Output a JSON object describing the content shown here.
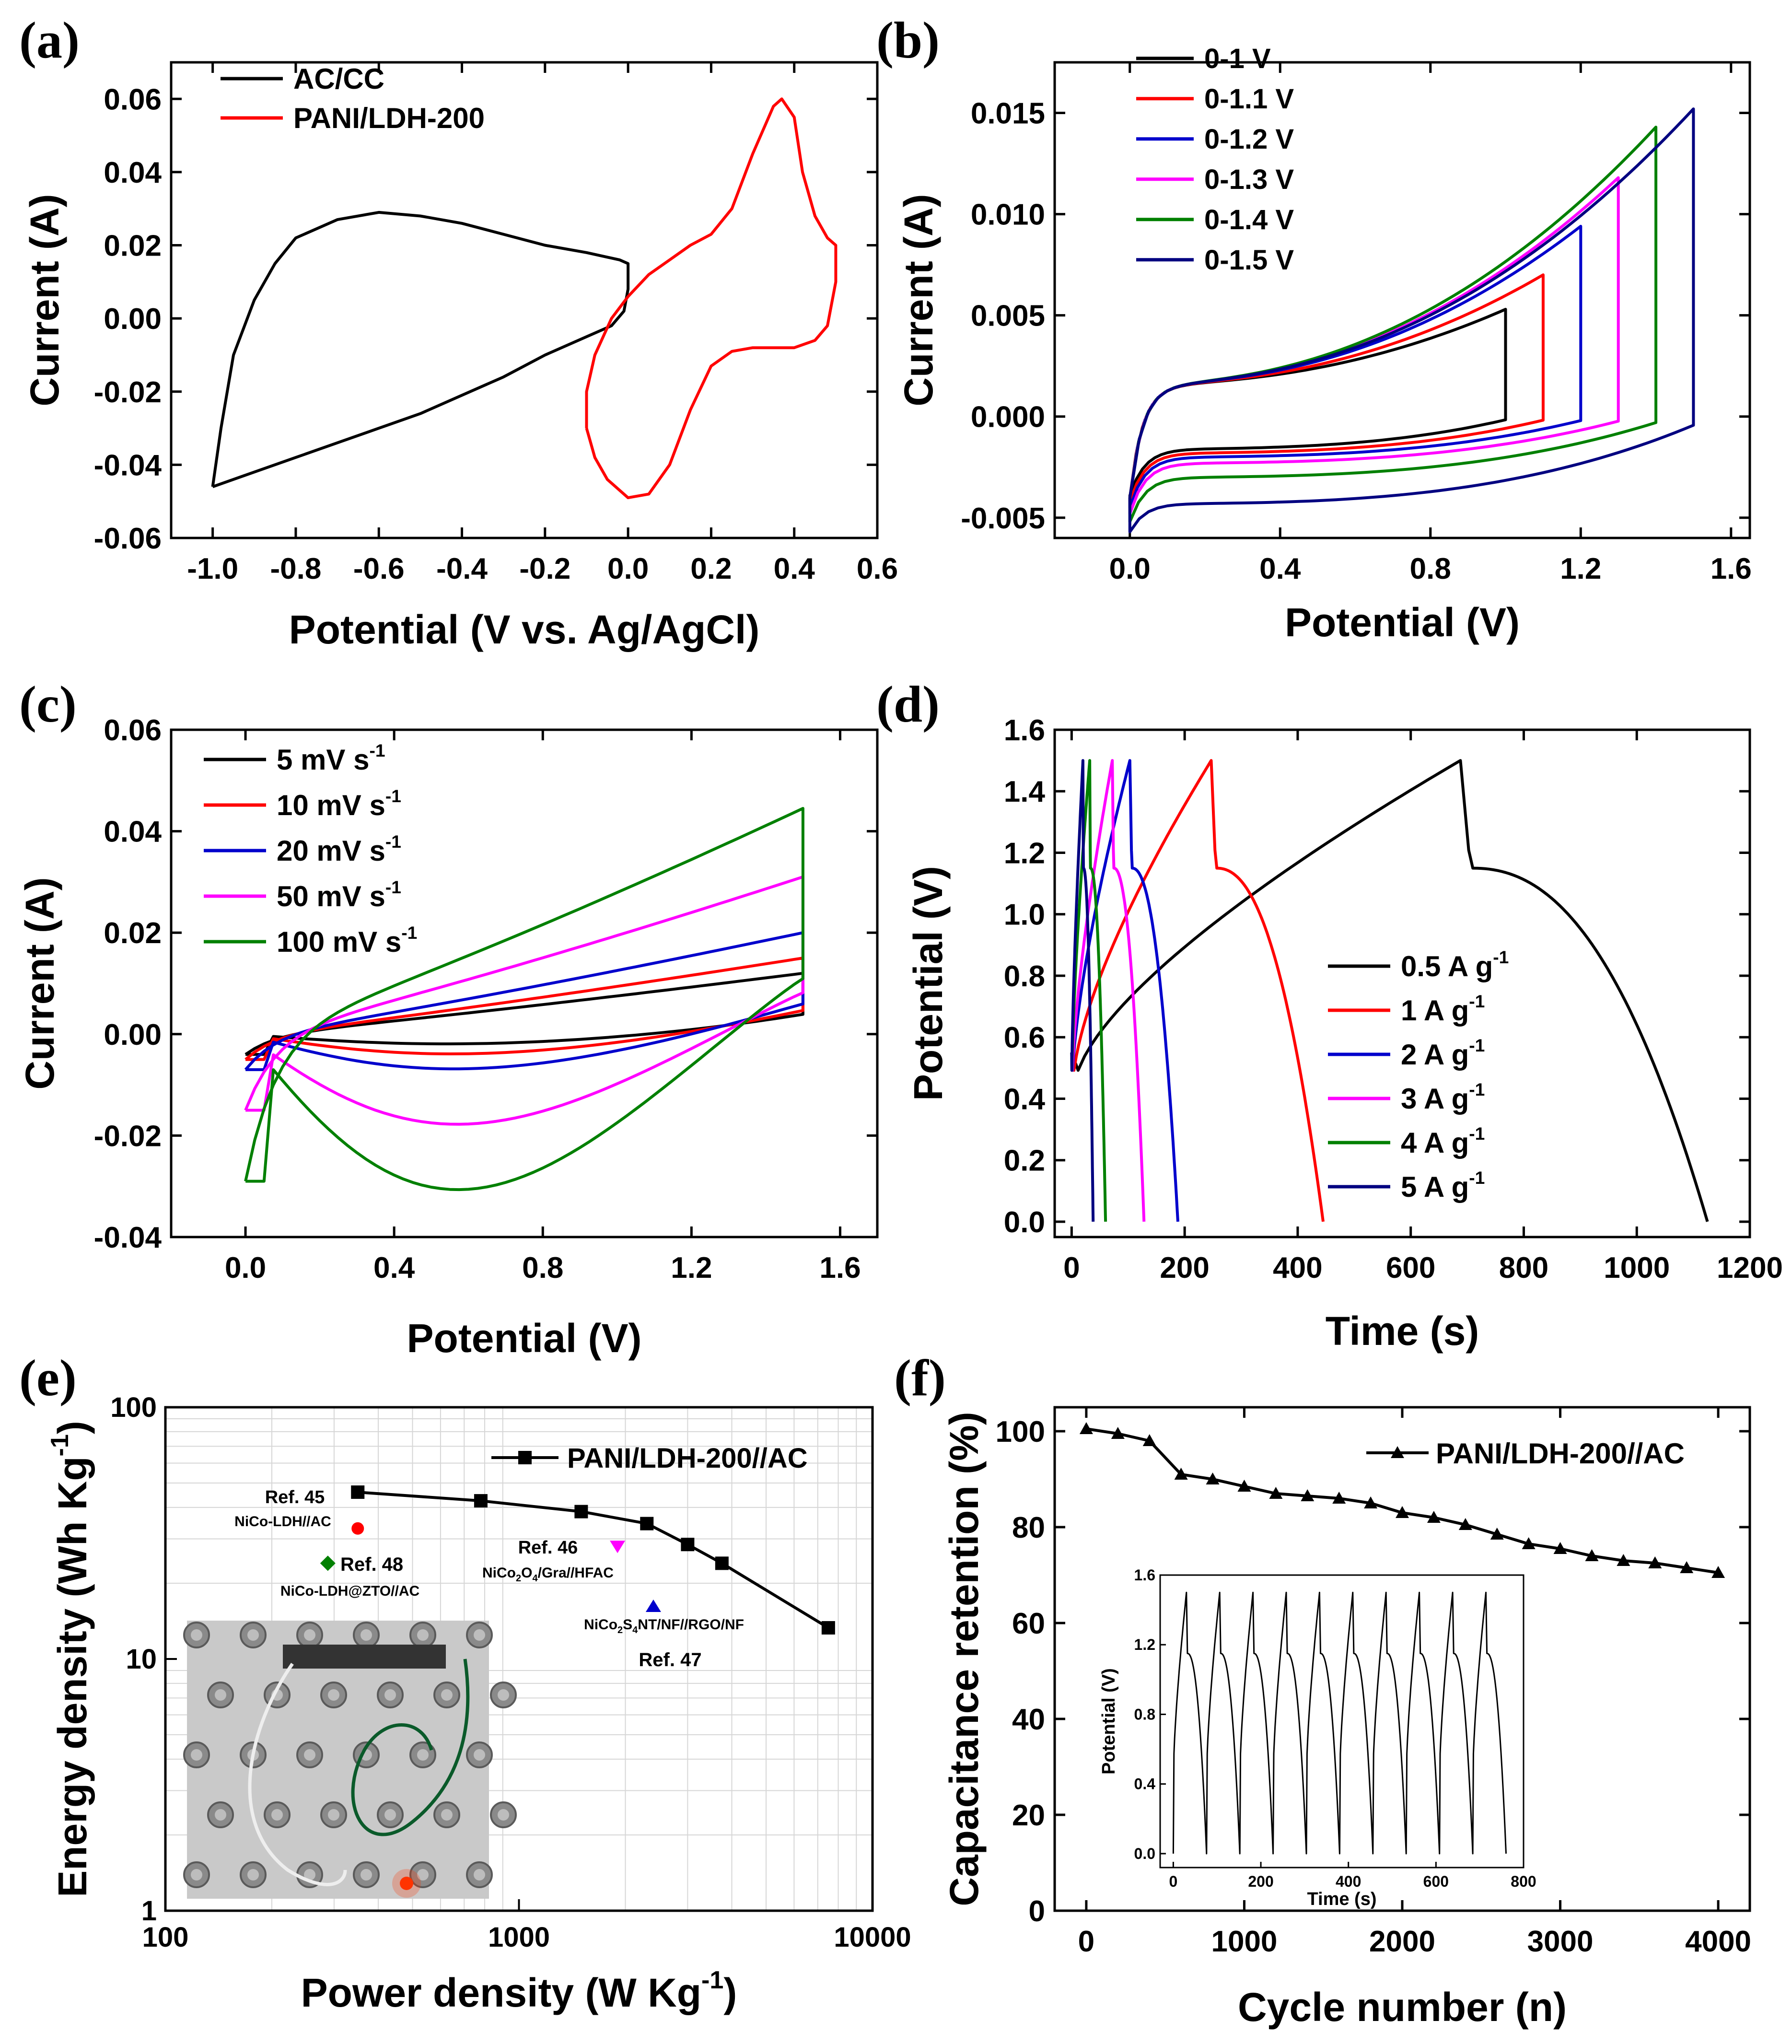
{
  "figure": {
    "panels": [
      {
        "id": "a",
        "label": "(a)"
      },
      {
        "id": "b",
        "label": "(b)"
      },
      {
        "id": "c",
        "label": "(c)"
      },
      {
        "id": "d",
        "label": "(d)"
      },
      {
        "id": "e",
        "label": "(e)"
      },
      {
        "id": "f",
        "label": "(f)"
      }
    ]
  },
  "chart_data": [
    {
      "id": "a",
      "type": "line",
      "xlabel": "Potential (V vs. Ag/AgCl)",
      "ylabel": "Current (A)",
      "xlim": [
        -1.1,
        0.6
      ],
      "ylim": [
        -0.06,
        0.07
      ],
      "xticks": [
        -1.0,
        -0.8,
        -0.6,
        -0.4,
        -0.2,
        0.0,
        0.2,
        0.4,
        0.6
      ],
      "xticklabels": [
        "-1.0",
        "-0.8",
        "-0.6",
        "-0.4",
        "-0.2",
        "0.0",
        "0.2",
        "0.4",
        "0.6"
      ],
      "yticks": [
        -0.06,
        -0.04,
        -0.02,
        0.0,
        0.02,
        0.04,
        0.06
      ],
      "yticklabels": [
        "-0.06",
        "-0.04",
        "-0.02",
        "0.00",
        "0.02",
        "0.04",
        "0.06"
      ],
      "legend_position": "top-left",
      "series": [
        {
          "name": "AC/CC",
          "color": "#000000",
          "points": [
            [
              -1.0,
              -0.046
            ],
            [
              -0.98,
              -0.03
            ],
            [
              -0.95,
              -0.01
            ],
            [
              -0.9,
              0.005
            ],
            [
              -0.85,
              0.015
            ],
            [
              -0.8,
              0.022
            ],
            [
              -0.7,
              0.027
            ],
            [
              -0.6,
              0.029
            ],
            [
              -0.5,
              0.028
            ],
            [
              -0.4,
              0.026
            ],
            [
              -0.3,
              0.023
            ],
            [
              -0.2,
              0.02
            ],
            [
              -0.1,
              0.018
            ],
            [
              -0.02,
              0.016
            ],
            [
              0.0,
              0.015
            ],
            [
              0.0,
              0.008
            ],
            [
              -0.01,
              0.002
            ],
            [
              -0.04,
              -0.002
            ],
            [
              -0.1,
              -0.005
            ],
            [
              -0.2,
              -0.01
            ],
            [
              -0.3,
              -0.016
            ],
            [
              -0.4,
              -0.021
            ],
            [
              -0.5,
              -0.026
            ],
            [
              -0.6,
              -0.03
            ],
            [
              -0.7,
              -0.034
            ],
            [
              -0.8,
              -0.038
            ],
            [
              -0.9,
              -0.042
            ],
            [
              -1.0,
              -0.046
            ]
          ]
        },
        {
          "name": "PANI/LDH-200",
          "color": "#ff0000",
          "points": [
            [
              -0.1,
              -0.03
            ],
            [
              -0.1,
              -0.02
            ],
            [
              -0.08,
              -0.01
            ],
            [
              -0.04,
              0.0
            ],
            [
              0.0,
              0.006
            ],
            [
              0.05,
              0.012
            ],
            [
              0.1,
              0.016
            ],
            [
              0.15,
              0.02
            ],
            [
              0.2,
              0.023
            ],
            [
              0.25,
              0.03
            ],
            [
              0.3,
              0.045
            ],
            [
              0.35,
              0.058
            ],
            [
              0.37,
              0.06
            ],
            [
              0.4,
              0.055
            ],
            [
              0.42,
              0.04
            ],
            [
              0.45,
              0.028
            ],
            [
              0.48,
              0.022
            ],
            [
              0.5,
              0.02
            ],
            [
              0.5,
              0.01
            ],
            [
              0.48,
              -0.002
            ],
            [
              0.45,
              -0.006
            ],
            [
              0.4,
              -0.008
            ],
            [
              0.3,
              -0.008
            ],
            [
              0.25,
              -0.009
            ],
            [
              0.2,
              -0.013
            ],
            [
              0.15,
              -0.025
            ],
            [
              0.1,
              -0.04
            ],
            [
              0.05,
              -0.048
            ],
            [
              0.0,
              -0.049
            ],
            [
              -0.05,
              -0.044
            ],
            [
              -0.08,
              -0.038
            ],
            [
              -0.1,
              -0.03
            ]
          ]
        }
      ]
    },
    {
      "id": "b",
      "type": "line",
      "xlabel": "Potential (V)",
      "ylabel": "Current (A)",
      "xlim": [
        -0.2,
        1.65
      ],
      "ylim": [
        -0.006,
        0.0175
      ],
      "xticks": [
        0.0,
        0.4,
        0.8,
        1.2,
        1.6
      ],
      "xticklabels": [
        "0.0",
        "0.4",
        "0.8",
        "1.2",
        "1.6"
      ],
      "yticks": [
        -0.005,
        0.0,
        0.005,
        0.01,
        0.015
      ],
      "yticklabels": [
        "-0.005",
        "0.000",
        "0.005",
        "0.010",
        "0.015"
      ],
      "legend_position": "top-left",
      "series": [
        {
          "name": "0-1 V",
          "color": "#000000",
          "Vmax": 1.0,
          "Ipeak": 0.0053,
          "Ilow": -0.0016,
          "Imin": -0.0039
        },
        {
          "name": "0-1.1 V",
          "color": "#ff0000",
          "Vmax": 1.1,
          "Ipeak": 0.007,
          "Ilow": -0.0018,
          "Imin": -0.0042
        },
        {
          "name": "0-1.2 V",
          "color": "#0000cc",
          "Vmax": 1.2,
          "Ipeak": 0.0094,
          "Ilow": -0.002,
          "Imin": -0.0045
        },
        {
          "name": "0-1.3 V",
          "color": "#ff00ff",
          "Vmax": 1.3,
          "Ipeak": 0.0118,
          "Ilow": -0.0023,
          "Imin": -0.0048
        },
        {
          "name": "0-1.4 V",
          "color": "#008000",
          "Vmax": 1.4,
          "Ipeak": 0.0143,
          "Ilow": -0.003,
          "Imin": -0.0052
        },
        {
          "name": "0-1.5 V",
          "color": "#000080",
          "Vmax": 1.5,
          "Ipeak": 0.0152,
          "Ilow": -0.0043,
          "Imin": -0.0057
        }
      ]
    },
    {
      "id": "c",
      "type": "line",
      "xlabel": "Potential (V)",
      "ylabel": "Current (A)",
      "xlim": [
        -0.2,
        1.7
      ],
      "ylim": [
        -0.04,
        0.06
      ],
      "xticks": [
        0.0,
        0.4,
        0.8,
        1.2,
        1.6
      ],
      "xticklabels": [
        "0.0",
        "0.4",
        "0.8",
        "1.2",
        "1.6"
      ],
      "yticks": [
        -0.04,
        -0.02,
        0.0,
        0.02,
        0.04,
        0.06
      ],
      "yticklabels": [
        "-0.04",
        "-0.02",
        "0.00",
        "0.02",
        "0.04",
        "0.06"
      ],
      "legend_position": "top-left",
      "series": [
        {
          "name": "5 mV s",
          "sup": "-1",
          "color": "#000000",
          "Ipeak": 0.012,
          "Imin": -0.004,
          "Ilow": -0.002
        },
        {
          "name": "10 mV s",
          "sup": "-1",
          "color": "#ff0000",
          "Ipeak": 0.015,
          "Imin": -0.005,
          "Ilow": -0.004
        },
        {
          "name": "20 mV s",
          "sup": "-1",
          "color": "#0000cc",
          "Ipeak": 0.02,
          "Imin": -0.007,
          "Ilow": -0.007
        },
        {
          "name": "50 mV s",
          "sup": "-1",
          "color": "#ff00ff",
          "Ipeak": 0.031,
          "Imin": -0.015,
          "Ilow": -0.018
        },
        {
          "name": "100 mV s",
          "sup": "-1",
          "color": "#008000",
          "Ipeak": 0.0445,
          "Imin": -0.029,
          "Ilow": -0.031
        }
      ]
    },
    {
      "id": "d",
      "type": "line",
      "xlabel": "Time (s)",
      "ylabel": "Potential (V)",
      "xlim": [
        -30,
        1200
      ],
      "ylim": [
        -0.05,
        1.6
      ],
      "xticks": [
        0,
        200,
        400,
        600,
        800,
        1000,
        1200
      ],
      "xticklabels": [
        "0",
        "200",
        "400",
        "600",
        "800",
        "1000",
        "1200"
      ],
      "yticks": [
        0.0,
        0.2,
        0.4,
        0.6,
        0.8,
        1.0,
        1.2,
        1.4,
        1.6
      ],
      "yticklabels": [
        "0.0",
        "0.2",
        "0.4",
        "0.6",
        "0.8",
        "1.0",
        "1.2",
        "1.4",
        "1.6"
      ],
      "legend_position": "bottom-right",
      "series": [
        {
          "name": "0.5 A g",
          "sup": "-1",
          "color": "#000000",
          "tc": 688,
          "td": 1125
        },
        {
          "name": "1 A g",
          "sup": "-1",
          "color": "#ff0000",
          "tc": 247,
          "td": 445
        },
        {
          "name": "2 A g",
          "sup": "-1",
          "color": "#0000cc",
          "tc": 103,
          "td": 188
        },
        {
          "name": "3 A g",
          "sup": "-1",
          "color": "#ff00ff",
          "tc": 72,
          "td": 128
        },
        {
          "name": "4 A g",
          "sup": "-1",
          "color": "#008000",
          "tc": 32,
          "td": 60
        },
        {
          "name": "5 A g",
          "sup": "-1",
          "color": "#000080",
          "tc": 20,
          "td": 38
        }
      ]
    },
    {
      "id": "e",
      "type": "scatter",
      "xlabel": "Power density (W Kg",
      "xlabel_sup": "-1",
      "xlabel_end": ")",
      "ylabel": "Energy density (Wh Kg",
      "ylabel_sup": "-1",
      "ylabel_end": ")",
      "xscale": "log",
      "yscale": "log",
      "xlim": [
        100,
        10000
      ],
      "ylim": [
        1,
        100
      ],
      "xticks": [
        100,
        1000,
        10000
      ],
      "xticklabels": [
        "100",
        "1000",
        "10000"
      ],
      "yticks": [
        1,
        10,
        100
      ],
      "yticklabels": [
        "1",
        "10",
        "100"
      ],
      "legend_position": "top-right",
      "series": [
        {
          "name": "PANI/LDH-200//AC",
          "color": "#000000",
          "marker": "square",
          "x": [
            350,
            780,
            1500,
            2300,
            3000,
            3750,
            7500
          ],
          "y": [
            46,
            42.5,
            38.5,
            34.5,
            28.5,
            24,
            13.3
          ]
        }
      ],
      "references": [
        {
          "ref": "Ref. 45",
          "material": "NiCo-LDH//AC",
          "x": 350,
          "y": 33,
          "color": "#ff0000",
          "marker": "circle"
        },
        {
          "ref": "Ref. 48",
          "material": "NiCo-LDH@ZTO//AC",
          "x": 288,
          "y": 24,
          "color": "#008000",
          "marker": "diamond"
        },
        {
          "ref": "Ref. 46",
          "material_parts": [
            "NiCo",
            "2",
            "O",
            "4",
            "/Gra//HFAC"
          ],
          "x": 1900,
          "y": 28,
          "color": "#ff00ff",
          "marker": "triangle-down"
        },
        {
          "ref": "Ref. 47",
          "material_parts": [
            "NiCo",
            "2",
            "S",
            "4",
            "NT/NF//RGO/NF"
          ],
          "x": 2400,
          "y": 16.2,
          "color": "#0000cc",
          "marker": "triangle-up"
        }
      ],
      "inset_photo": "device lighting red LED"
    },
    {
      "id": "f",
      "type": "line",
      "xlabel": "Cycle number (n)",
      "ylabel": "Capacitance retention (%)",
      "xlim": [
        -200,
        4200
      ],
      "ylim": [
        0,
        105
      ],
      "xticks": [
        0,
        1000,
        2000,
        3000,
        4000
      ],
      "xticklabels": [
        "0",
        "1000",
        "2000",
        "3000",
        "4000"
      ],
      "yticks": [
        0,
        20,
        40,
        60,
        80,
        100
      ],
      "yticklabels": [
        "0",
        "20",
        "40",
        "60",
        "80",
        "100"
      ],
      "legend_position": "top-right",
      "series": [
        {
          "name": "PANI/LDH-200//AC",
          "color": "#000000",
          "marker": "triangle-up",
          "x": [
            0,
            200,
            400,
            600,
            800,
            1000,
            1200,
            1400,
            1600,
            1800,
            2000,
            2200,
            2400,
            2600,
            2800,
            3000,
            3200,
            3400,
            3600,
            3800,
            4000
          ],
          "y": [
            100.5,
            99.5,
            98,
            91,
            90,
            88.5,
            87,
            86.5,
            86,
            85,
            83,
            82,
            80.5,
            78.5,
            76.5,
            75.5,
            74,
            73,
            72.5,
            71.5,
            70.5
          ]
        }
      ],
      "inset": {
        "type": "line",
        "xlabel": "Time (s)",
        "ylabel": "Potential (V)",
        "xlim": [
          -30,
          800
        ],
        "ylim": [
          -0.08,
          1.6
        ],
        "xticks": [
          0,
          200,
          400,
          600,
          800
        ],
        "xticklabels": [
          "0",
          "200",
          "400",
          "600",
          "800"
        ],
        "yticks": [
          0.0,
          0.4,
          0.8,
          1.2,
          1.6
        ],
        "yticklabels": [
          "0.0",
          "0.4",
          "0.8",
          "1.2",
          "1.6"
        ],
        "cycles": 10,
        "period": 76,
        "charge_time": 30
      }
    }
  ]
}
